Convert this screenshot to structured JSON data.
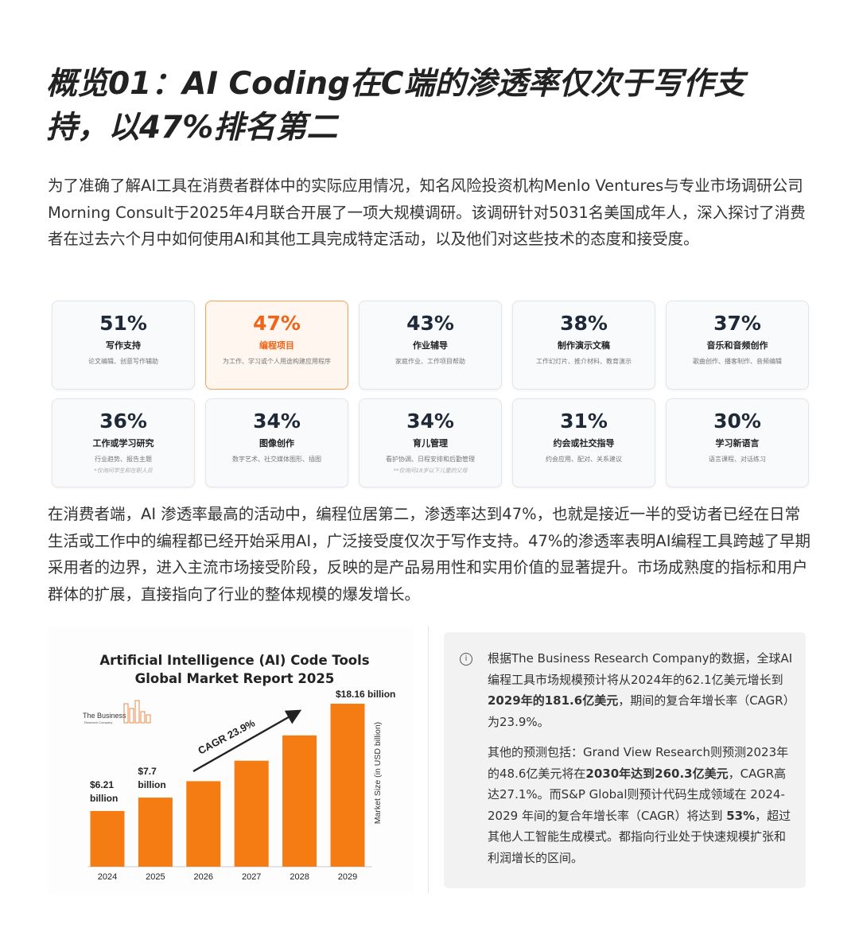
{
  "header": {
    "title": "概览01：AI Coding在C端的渗透率仅次于写作支持，以47%排名第二"
  },
  "intro": "为了准确了解AI工具在消费者群体中的实际应用情况，知名风险投资机构Menlo Ventures与专业市场调研公司Morning Consult于2025年4月联合开展了一项大规模调研。该调研针对5031名美国成年人，深入探讨了消费者在过去六个月中如何使用AI和其他工具完成特定活动，以及他们对这些技术的态度和接受度。",
  "cards": [
    {
      "pct": "51%",
      "title": "写作支持",
      "desc": "论文编辑、创意写作辅助"
    },
    {
      "pct": "47%",
      "title": "编程项目",
      "desc": "为工作、学习或个人用途构建应用程序",
      "highlight": true
    },
    {
      "pct": "43%",
      "title": "作业辅导",
      "desc": "家庭作业、工作项目帮助"
    },
    {
      "pct": "38%",
      "title": "制作演示文稿",
      "desc": "工作幻灯片、推介材料、教育演示"
    },
    {
      "pct": "37%",
      "title": "音乐和音频创作",
      "desc": "歌曲创作、播客制作、音频编辑"
    },
    {
      "pct": "36%",
      "title": "工作或学习研究",
      "desc": "行业趋势、报告主题",
      "note": "*仅询问学生和在职人员"
    },
    {
      "pct": "34%",
      "title": "图像创作",
      "desc": "数字艺术、社交媒体图形、插图"
    },
    {
      "pct": "34%",
      "title": "育儿管理",
      "desc": "看护协调、日程安排和后勤管理",
      "note": "**仅询问18岁以下儿童的父母"
    },
    {
      "pct": "31%",
      "title": "约会或社交指导",
      "desc": "约会应用、配对、关系建议"
    },
    {
      "pct": "30%",
      "title": "学习新语言",
      "desc": "语言课程、对话练习"
    }
  ],
  "analysis": "在消费者端，AI 渗透率最高的活动中，编程位居第二，渗透率达到47%，也就是接近一半的受访者已经在日常生活或工作中的编程都已经开始采用AI，广泛接受度仅次于写作支持。47%的渗透率表明AI编程工具跨越了早期采用者的边界，进入主流市场接受阶段，反映的是产品易用性和实用价值的显著提升。市场成熟度的指标和用户群体的扩展，直接指向了行业的整体规模的爆发增长。",
  "chart_data": {
    "type": "bar",
    "title": "Artificial Intelligence (AI) Code Tools Global Market Report 2025",
    "logo": "The Business",
    "logo_sub": "Research Company",
    "categories": [
      "2024",
      "2025",
      "2026",
      "2027",
      "2028",
      "2029"
    ],
    "values": [
      6.21,
      7.7,
      9.53,
      11.81,
      14.63,
      18.16
    ],
    "value_labels": [
      "$6.21 billion",
      "$7.7 billion",
      null,
      null,
      null,
      "$18.16 billion"
    ],
    "color": "#f57c12",
    "ylabel": "Market Size (in USD billion)",
    "annotation": "CAGR 23.9%"
  },
  "note_panel": {
    "paragraphs": [
      [
        {
          "text": "根据The Business Research Company的数据，全球AI编程工具市场规模预计将从2024年的62.1亿美元增长到"
        },
        {
          "text": "2029年的181.6亿美元",
          "bold": true
        },
        {
          "text": "，期间的复合年增长率（CAGR）为23.9%。"
        }
      ],
      [
        {
          "text": "其他的预测包括：Grand View Research则预测2023年的48.6亿美元将在"
        },
        {
          "text": "2030年达到260.3亿美元",
          "bold": true
        },
        {
          "text": "，CAGR高达27.1%。而S&P Global则预计代码生成领域在 2024-2029 年间的复合年增长率（CAGR）将达到 "
        },
        {
          "text": "53%",
          "bold": true
        },
        {
          "text": "，超过其他人工智能生成模式。都指向行业处于快速规模扩张和利润增长的区间。"
        }
      ]
    ]
  }
}
